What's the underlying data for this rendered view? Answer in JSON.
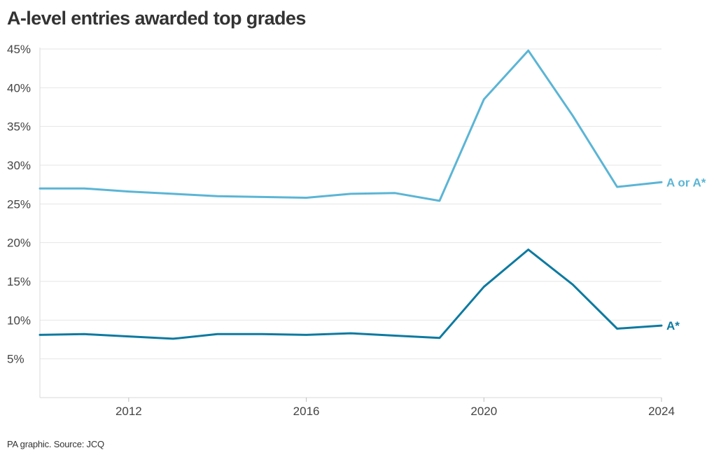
{
  "title": "A-level entries awarded top grades",
  "source": "PA graphic. Source: JCQ",
  "chart_data": {
    "type": "line",
    "title": "A-level entries awarded top grades",
    "xlabel": "",
    "ylabel": "",
    "x": [
      2010,
      2011,
      2012,
      2013,
      2014,
      2015,
      2016,
      2017,
      2018,
      2019,
      2020,
      2021,
      2022,
      2023,
      2024
    ],
    "xlim": [
      2010,
      2024
    ],
    "ylim": [
      0,
      45
    ],
    "x_ticks": [
      "2012",
      "2016",
      "2020",
      "2024"
    ],
    "y_ticks": [
      "5%",
      "10%",
      "15%",
      "20%",
      "25%",
      "30%",
      "35%",
      "40%",
      "45%"
    ],
    "grid": "horizontal",
    "legend": "direct labels at line ends",
    "series": [
      {
        "name": "A or A*",
        "color": "#5bb5d5",
        "values": [
          27.0,
          27.0,
          26.6,
          26.3,
          26.0,
          25.9,
          25.8,
          26.3,
          26.4,
          25.4,
          38.5,
          44.8,
          36.4,
          27.2,
          27.8
        ]
      },
      {
        "name": "A*",
        "color": "#0d7aa0",
        "values": [
          8.1,
          8.2,
          7.9,
          7.6,
          8.2,
          8.2,
          8.1,
          8.3,
          8.0,
          7.7,
          14.3,
          19.1,
          14.6,
          8.9,
          9.3
        ]
      }
    ]
  }
}
